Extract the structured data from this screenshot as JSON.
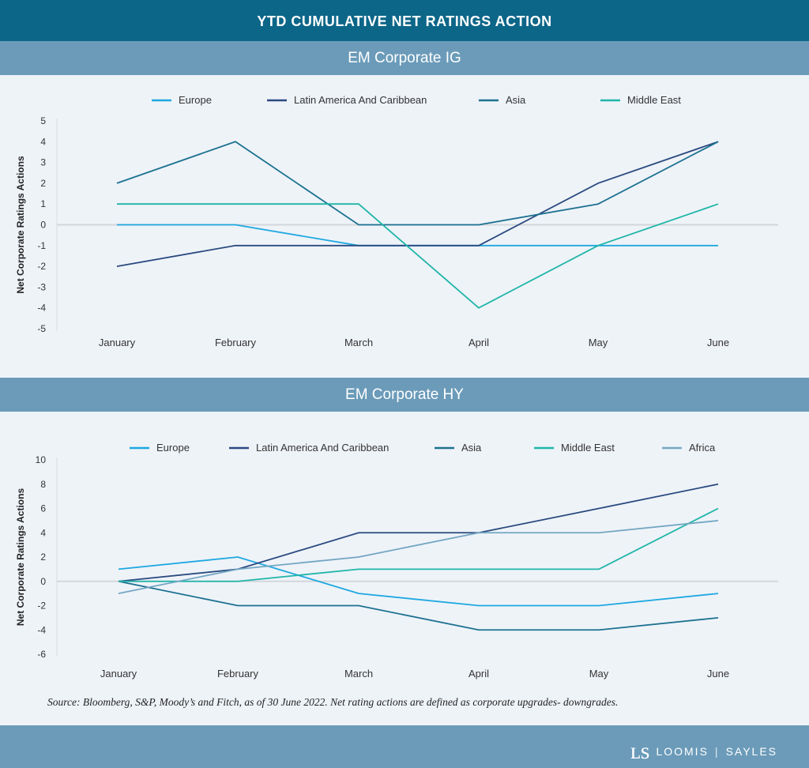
{
  "header": {
    "title": "YTD CUMULATIVE NET RATINGS ACTION"
  },
  "colors": {
    "Europe": "#1ea8e0",
    "Latin America And Caribbean": "#2a4a7f",
    "Asia": "#1c7191",
    "Middle East": "#1fb5a8",
    "Africa": "#73a6c2"
  },
  "chart_data": [
    {
      "type": "line",
      "title": "EM Corporate IG",
      "ylabel": "Net Corporate Ratings Actions",
      "xlabel": "",
      "categories": [
        "January",
        "February",
        "March",
        "April",
        "May",
        "June"
      ],
      "ylim": [
        -5,
        5
      ],
      "yticks": [
        5,
        4,
        3,
        2,
        1,
        0,
        -1,
        -2,
        -3,
        -4,
        -5
      ],
      "legend": "top",
      "series": [
        {
          "name": "Europe",
          "values": [
            0,
            0,
            -1,
            -1,
            -1,
            -1
          ]
        },
        {
          "name": "Latin America And Caribbean",
          "values": [
            -2,
            -1,
            -1,
            -1,
            2,
            4
          ]
        },
        {
          "name": "Asia",
          "values": [
            2,
            4,
            0,
            0,
            1,
            4
          ]
        },
        {
          "name": "Middle East",
          "values": [
            1,
            1,
            1,
            -4,
            -1,
            1
          ]
        }
      ]
    },
    {
      "type": "line",
      "title": "EM Corporate HY",
      "ylabel": "Net Corporate Ratings Actions",
      "xlabel": "",
      "categories": [
        "January",
        "February",
        "March",
        "April",
        "May",
        "June"
      ],
      "ylim": [
        -6,
        10
      ],
      "yticks": [
        10,
        8,
        6,
        4,
        2,
        0,
        -2,
        -4,
        -6
      ],
      "legend": "top",
      "series": [
        {
          "name": "Europe",
          "values": [
            1,
            2,
            -1,
            -2,
            -2,
            -1
          ]
        },
        {
          "name": "Latin America And Caribbean",
          "values": [
            0,
            1,
            4,
            4,
            6,
            8
          ]
        },
        {
          "name": "Asia",
          "values": [
            0,
            -2,
            -2,
            -4,
            -4,
            -3
          ]
        },
        {
          "name": "Middle East",
          "values": [
            0,
            0,
            1,
            1,
            1,
            6
          ]
        },
        {
          "name": "Africa",
          "values": [
            -1,
            1,
            2,
            4,
            4,
            5
          ]
        }
      ]
    }
  ],
  "source": "Source: Bloomberg, S&P, Moody’s and Fitch, as of 30 June 2022. Net rating actions are defined as corporate upgrades- downgrades.",
  "logo": {
    "mark": "LS",
    "left": "LOOMIS",
    "right": "SAYLES"
  }
}
